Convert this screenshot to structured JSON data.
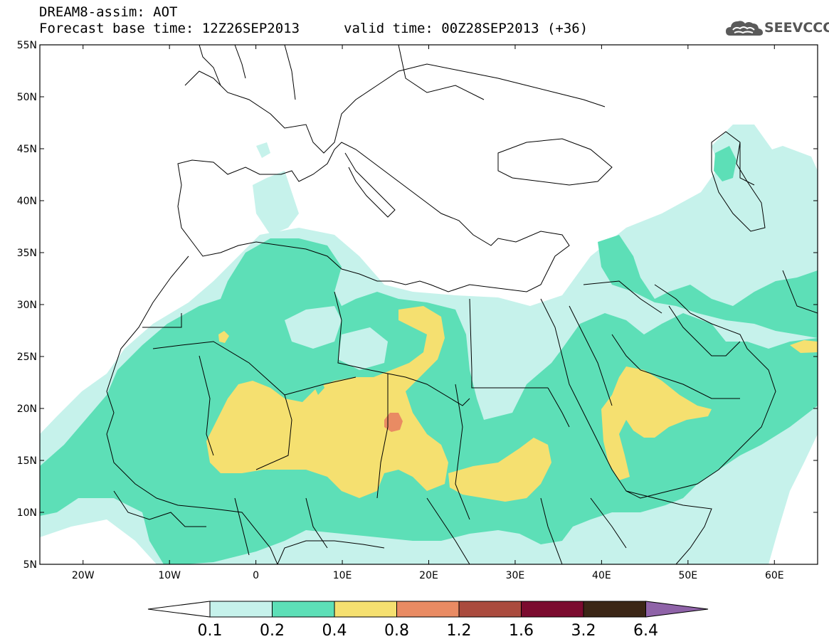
{
  "header": {
    "title_line1": "DREAM8-assim: AOT",
    "title_line2": "Forecast base time: 12Z26SEP2013",
    "valid_time": "valid time: 00Z28SEP2013 (+36)",
    "logo_text": "SEEVCCC",
    "logo_icon": "cloud-icon"
  },
  "map": {
    "lon_range": [
      -25,
      65
    ],
    "lat_range": [
      5,
      55
    ],
    "lat_ticks": [
      {
        "value": 55,
        "label": "55N"
      },
      {
        "value": 50,
        "label": "50N"
      },
      {
        "value": 45,
        "label": "45N"
      },
      {
        "value": 40,
        "label": "40N"
      },
      {
        "value": 35,
        "label": "35N"
      },
      {
        "value": 30,
        "label": "30N"
      },
      {
        "value": 25,
        "label": "25N"
      },
      {
        "value": 20,
        "label": "20N"
      },
      {
        "value": 15,
        "label": "15N"
      },
      {
        "value": 10,
        "label": "10N"
      },
      {
        "value": 5,
        "label": "5N"
      }
    ],
    "lon_ticks": [
      {
        "value": -20,
        "label": "20W"
      },
      {
        "value": -10,
        "label": "10W"
      },
      {
        "value": 0,
        "label": "0"
      },
      {
        "value": 10,
        "label": "10E"
      },
      {
        "value": 20,
        "label": "20E"
      },
      {
        "value": 30,
        "label": "30E"
      },
      {
        "value": 40,
        "label": "40E"
      },
      {
        "value": 50,
        "label": "50E"
      },
      {
        "value": 60,
        "label": "60E"
      }
    ]
  },
  "colorbar": {
    "labels": [
      "0.1",
      "0.2",
      "0.4",
      "0.8",
      "1.2",
      "1.6",
      "3.2",
      "6.4"
    ],
    "colors": [
      "#c6f2eb",
      "#5ddfb7",
      "#f5e070",
      "#e98b63",
      "#aa4b3e",
      "#7b0b2f",
      "#3b2616"
    ],
    "left_extend_color": "#ffffff",
    "right_extend_color": "#8f63a8"
  },
  "colors": {
    "level_0_1": "#c6f2eb",
    "level_0_2": "#5ddfb7",
    "level_0_4": "#f5e070",
    "level_0_8": "#e98b63",
    "border": "#000000"
  }
}
